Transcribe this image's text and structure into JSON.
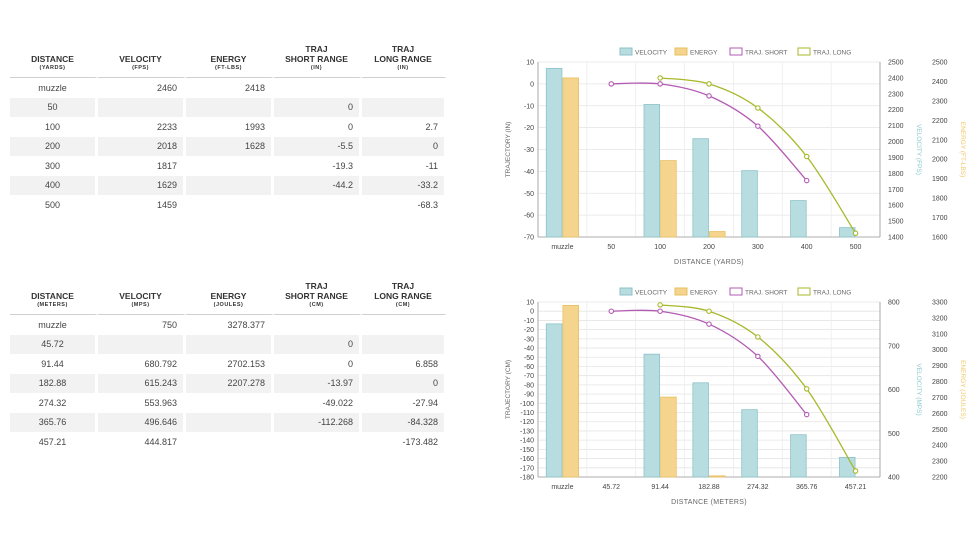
{
  "tables": [
    {
      "headers": [
        {
          "title": [
            "DISTANCE"
          ],
          "unit": "(YARDS)"
        },
        {
          "title": [
            "VELOCITY"
          ],
          "unit": "(FPS)"
        },
        {
          "title": [
            "ENERGY"
          ],
          "unit": "(FT-LBS)"
        },
        {
          "title": [
            "TRAJ",
            "SHORT RANGE"
          ],
          "unit": "(IN)"
        },
        {
          "title": [
            "TRAJ",
            "LONG RANGE"
          ],
          "unit": "(IN)"
        }
      ],
      "rows": [
        [
          "muzzle",
          "2460",
          "2418",
          "",
          ""
        ],
        [
          "50",
          "",
          "",
          "0",
          ""
        ],
        [
          "100",
          "2233",
          "1993",
          "0",
          "2.7"
        ],
        [
          "200",
          "2018",
          "1628",
          "-5.5",
          "0"
        ],
        [
          "300",
          "1817",
          "",
          "-19.3",
          "-11"
        ],
        [
          "400",
          "1629",
          "",
          "-44.2",
          "-33.2"
        ],
        [
          "500",
          "1459",
          "",
          "",
          "-68.3"
        ]
      ]
    },
    {
      "headers": [
        {
          "title": [
            "DISTANCE"
          ],
          "unit": "(METERS)"
        },
        {
          "title": [
            "VELOCITY"
          ],
          "unit": "(MPS)"
        },
        {
          "title": [
            "ENERGY"
          ],
          "unit": "(JOULES)"
        },
        {
          "title": [
            "TRAJ",
            "SHORT RANGE"
          ],
          "unit": "(CM)"
        },
        {
          "title": [
            "TRAJ",
            "LONG RANGE"
          ],
          "unit": "(CM)"
        }
      ],
      "rows": [
        [
          "muzzle",
          "750",
          "3278.377",
          "",
          ""
        ],
        [
          "45.72",
          "",
          "",
          "0",
          ""
        ],
        [
          "91.44",
          "680.792",
          "2702.153",
          "0",
          "6.858"
        ],
        [
          "182.88",
          "615.243",
          "2207.278",
          "-13.97",
          "0"
        ],
        [
          "274.32",
          "553.963",
          "",
          "-49.022",
          "-27.94"
        ],
        [
          "365.76",
          "496.646",
          "",
          "-112.268",
          "-84.328"
        ],
        [
          "457.21",
          "444.817",
          "",
          "",
          "-173.482"
        ]
      ]
    }
  ],
  "colors": {
    "velocity_fill": "#b7dde0",
    "velocity_stroke": "#8cc3c8",
    "energy_fill": "#f5d58e",
    "energy_stroke": "#e8bf60",
    "traj_short": "#b45ab4",
    "traj_long": "#a8b82a",
    "velocity_axis_text": "#8cc9cc",
    "energy_axis_text": "#f0c86a"
  },
  "chart_data": [
    {
      "type": "bar",
      "categories": [
        "muzzle",
        "50",
        "100",
        "200",
        "300",
        "400",
        "500"
      ],
      "legend": [
        "VELOCITY",
        "ENERGY",
        "TRAJ. SHORT",
        "TRAJ. LONG"
      ],
      "legend_position": "top",
      "xlabel": "DISTANCE (YARDS)",
      "ylabel_left": "TRAJECTORY (IN)",
      "ylabel_right1": "VELOCITY (FPS)",
      "ylabel_right2": "ENERGY (FT-LBS)",
      "ylim_left": [
        -70,
        10
      ],
      "yticks_left": [
        10,
        0,
        -10,
        -20,
        -30,
        -40,
        -50,
        -60,
        -70
      ],
      "ylim_right1": [
        1400,
        2500
      ],
      "yticks_right1": [
        2500,
        2400,
        2300,
        2200,
        2100,
        2000,
        1900,
        1800,
        1700,
        1600,
        1500,
        1400
      ],
      "ylim_right2": [
        1600,
        2500
      ],
      "yticks_right2": [
        2500,
        2400,
        2300,
        2200,
        2100,
        2000,
        1900,
        1800,
        1700,
        1600
      ],
      "grid": true,
      "series": [
        {
          "name": "VELOCITY",
          "axis": "right1",
          "kind": "bar",
          "values": [
            2460,
            null,
            2233,
            2018,
            1817,
            1629,
            1459
          ]
        },
        {
          "name": "ENERGY",
          "axis": "right2",
          "kind": "bar",
          "values": [
            2418,
            null,
            1993,
            1628,
            null,
            null,
            null
          ]
        },
        {
          "name": "TRAJ. SHORT",
          "axis": "left",
          "kind": "line",
          "values": [
            null,
            0,
            0,
            -5.5,
            -19.3,
            -44.2,
            null
          ]
        },
        {
          "name": "TRAJ. LONG",
          "axis": "left",
          "kind": "line",
          "values": [
            null,
            null,
            2.7,
            0,
            -11,
            -33.2,
            -68.3
          ]
        }
      ]
    },
    {
      "type": "bar",
      "categories": [
        "muzzle",
        "45.72",
        "91.44",
        "182.88",
        "274.32",
        "365.76",
        "457.21"
      ],
      "legend": [
        "VELOCITY",
        "ENERGY",
        "TRAJ. SHORT",
        "TRAJ. LONG"
      ],
      "legend_position": "top",
      "xlabel": "DISTANCE (METERS)",
      "ylabel_left": "TRAJECTORY (CM)",
      "ylabel_right1": "VELOCITY (MPS)",
      "ylabel_right2": "ENERGY (JOULES)",
      "ylim_left": [
        -180,
        10
      ],
      "yticks_left": [
        10,
        0,
        -10,
        -20,
        -30,
        -40,
        -50,
        -60,
        -70,
        -80,
        -90,
        -100,
        -110,
        -120,
        -130,
        -140,
        -150,
        -160,
        -170,
        -180
      ],
      "ylim_right1": [
        400,
        800
      ],
      "yticks_right1": [
        800,
        700,
        600,
        500,
        400
      ],
      "ylim_right2": [
        2200,
        3300
      ],
      "yticks_right2": [
        3300,
        3200,
        3100,
        3000,
        2900,
        2800,
        2700,
        2600,
        2500,
        2400,
        2300,
        2200
      ],
      "grid": true,
      "series": [
        {
          "name": "VELOCITY",
          "axis": "right1",
          "kind": "bar",
          "values": [
            750,
            null,
            680.792,
            615.243,
            553.963,
            496.646,
            444.817
          ]
        },
        {
          "name": "ENERGY",
          "axis": "right2",
          "kind": "bar",
          "values": [
            3278.377,
            null,
            2702.153,
            2207.278,
            null,
            null,
            null
          ]
        },
        {
          "name": "TRAJ. SHORT",
          "axis": "left",
          "kind": "line",
          "values": [
            null,
            0,
            0,
            -13.97,
            -49.022,
            -112.268,
            null
          ]
        },
        {
          "name": "TRAJ. LONG",
          "axis": "left",
          "kind": "line",
          "values": [
            null,
            null,
            6.858,
            0,
            -27.94,
            -84.328,
            -173.482
          ]
        }
      ]
    }
  ]
}
